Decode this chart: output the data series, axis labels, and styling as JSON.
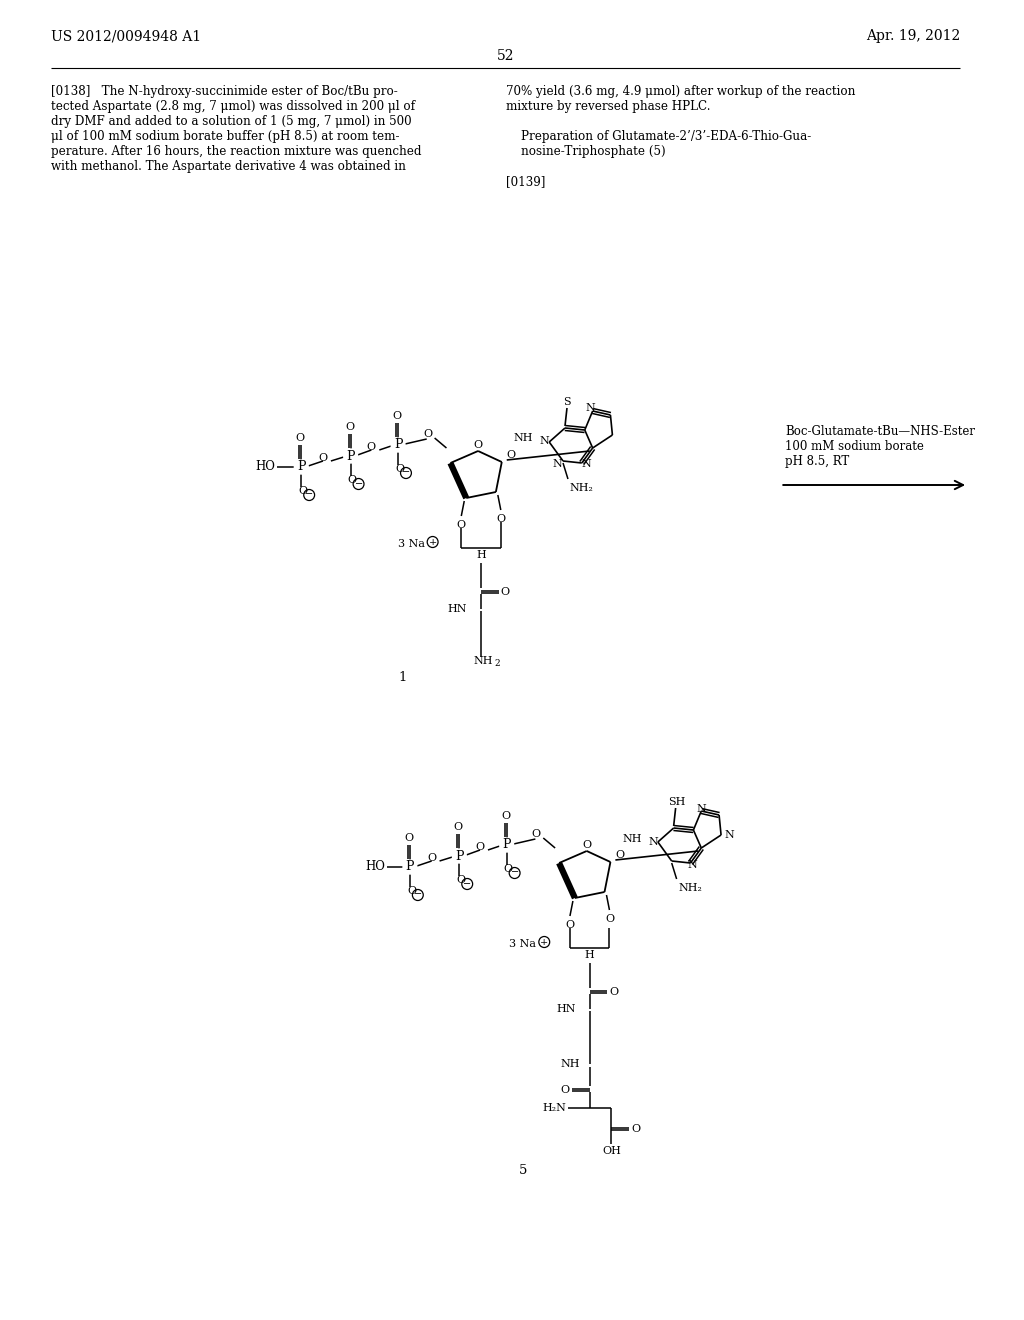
{
  "bg_color": "#ffffff",
  "header_left": "US 2012/0094948 A1",
  "header_right": "Apr. 19, 2012",
  "page_number": "52",
  "para_left": "[0138]   The N-hydroxy-succinimide ester of Boc/tBu pro-\ntected Aspartate (2.8 mg, 7 μmol) was dissolved in 200 μl of\ndry DMF and added to a solution of 1 (5 mg, 7 μmol) in 500\nμl of 100 mM sodium borate buffer (pH 8.5) at room tem-\nperature. After 16 hours, the reaction mixture was quenched\nwith methanol. The Aspartate derivative 4 was obtained in",
  "para_right": "70% yield (3.6 mg, 4.9 μmol) after workup of the reaction\nmixture by reversed phase HPLC.\n\n    Preparation of Glutamate-2’/3’-EDA-6-Thio-Gua-\n    nosine-Triphosphate (5)\n\n[0139]",
  "reaction_text": "Boc-Glutamate-tBu—NHS-Ester\n100 mM sodium borate\npH 8.5, RT"
}
